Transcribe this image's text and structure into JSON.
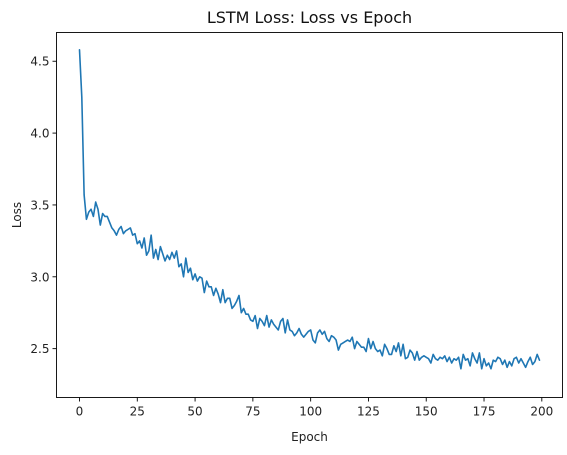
{
  "chart_data": {
    "type": "line",
    "title": "LSTM Loss: Loss vs Epoch",
    "xlabel": "Epoch",
    "ylabel": "Loss",
    "xlim": [
      -9.95,
      208.95
    ],
    "ylim": [
      2.16,
      4.7
    ],
    "xticks": [
      0,
      25,
      50,
      75,
      100,
      125,
      150,
      175,
      200
    ],
    "xtick_labels": [
      "0",
      "25",
      "50",
      "75",
      "100",
      "125",
      "150",
      "175",
      "200"
    ],
    "yticks": [
      2.5,
      3.0,
      3.5,
      4.0,
      4.5
    ],
    "ytick_labels": [
      "2.5",
      "3.0",
      "3.5",
      "4.0",
      "4.5"
    ],
    "grid": false,
    "legend": "none",
    "line_color": "#1f77b4",
    "series": [
      {
        "x": [
          0,
          1,
          2,
          3,
          4,
          5,
          6,
          7,
          8,
          9,
          10,
          11,
          12,
          13,
          14,
          15,
          16,
          17,
          18,
          19,
          20,
          21,
          22,
          23,
          24,
          25,
          26,
          27,
          28,
          29,
          30,
          31,
          32,
          33,
          34,
          35,
          36,
          37,
          38,
          39,
          40,
          41,
          42,
          43,
          44,
          45,
          46,
          47,
          48,
          49,
          50,
          51,
          52,
          53,
          54,
          55,
          56,
          57,
          58,
          59,
          60,
          61,
          62,
          63,
          64,
          65,
          66,
          67,
          68,
          69,
          70,
          71,
          72,
          73,
          74,
          75,
          76,
          77,
          78,
          79,
          80,
          81,
          82,
          83,
          84,
          85,
          86,
          87,
          88,
          89,
          90,
          91,
          92,
          93,
          94,
          95,
          96,
          97,
          98,
          99,
          100,
          101,
          102,
          103,
          104,
          105,
          106,
          107,
          108,
          109,
          110,
          111,
          112,
          113,
          114,
          115,
          116,
          117,
          118,
          119,
          120,
          121,
          122,
          123,
          124,
          125,
          126,
          127,
          128,
          129,
          130,
          131,
          132,
          133,
          134,
          135,
          136,
          137,
          138,
          139,
          140,
          141,
          142,
          143,
          144,
          145,
          146,
          147,
          148,
          149,
          150,
          151,
          152,
          153,
          154,
          155,
          156,
          157,
          158,
          159,
          160,
          161,
          162,
          163,
          164,
          165,
          166,
          167,
          168,
          169,
          170,
          171,
          172,
          173,
          174,
          175,
          176,
          177,
          178,
          179,
          180,
          181,
          182,
          183,
          184,
          185,
          186,
          187,
          188,
          189,
          190,
          191,
          192,
          193,
          194,
          195,
          196,
          197,
          198,
          199
        ],
        "values": [
          4.58,
          4.25,
          3.57,
          3.4,
          3.45,
          3.47,
          3.42,
          3.52,
          3.47,
          3.36,
          3.44,
          3.42,
          3.42,
          3.38,
          3.34,
          3.32,
          3.29,
          3.33,
          3.35,
          3.3,
          3.32,
          3.33,
          3.34,
          3.29,
          3.3,
          3.23,
          3.25,
          3.2,
          3.27,
          3.15,
          3.18,
          3.29,
          3.13,
          3.19,
          3.12,
          3.21,
          3.16,
          3.11,
          3.15,
          3.12,
          3.17,
          3.13,
          3.18,
          3.07,
          3.09,
          3.0,
          3.13,
          3.03,
          3.06,
          2.98,
          3.02,
          2.97,
          3.0,
          2.99,
          2.89,
          2.97,
          2.93,
          2.93,
          2.87,
          2.92,
          2.88,
          2.82,
          2.91,
          2.82,
          2.85,
          2.85,
          2.78,
          2.8,
          2.83,
          2.87,
          2.75,
          2.78,
          2.74,
          2.74,
          2.7,
          2.69,
          2.73,
          2.64,
          2.71,
          2.69,
          2.66,
          2.73,
          2.65,
          2.7,
          2.67,
          2.65,
          2.63,
          2.69,
          2.71,
          2.61,
          2.7,
          2.63,
          2.62,
          2.59,
          2.61,
          2.64,
          2.6,
          2.58,
          2.6,
          2.62,
          2.63,
          2.56,
          2.54,
          2.61,
          2.63,
          2.6,
          2.62,
          2.57,
          2.55,
          2.59,
          2.58,
          2.56,
          2.49,
          2.53,
          2.54,
          2.55,
          2.56,
          2.55,
          2.58,
          2.5,
          2.55,
          2.53,
          2.51,
          2.51,
          2.48,
          2.57,
          2.5,
          2.55,
          2.5,
          2.48,
          2.49,
          2.45,
          2.53,
          2.5,
          2.46,
          2.46,
          2.52,
          2.48,
          2.54,
          2.45,
          2.53,
          2.43,
          2.44,
          2.49,
          2.47,
          2.42,
          2.48,
          2.42,
          2.44,
          2.45,
          2.44,
          2.43,
          2.4,
          2.46,
          2.43,
          2.42,
          2.44,
          2.43,
          2.45,
          2.41,
          2.44,
          2.4,
          2.43,
          2.42,
          2.44,
          2.36,
          2.46,
          2.42,
          2.43,
          2.38,
          2.47,
          2.43,
          2.4,
          2.47,
          2.36,
          2.43,
          2.38,
          2.4,
          2.36,
          2.42,
          2.41,
          2.44,
          2.43,
          2.39,
          2.42,
          2.37,
          2.41,
          2.38,
          2.43,
          2.44,
          2.4,
          2.43,
          2.4,
          2.37,
          2.41,
          2.44,
          2.39,
          2.41,
          2.46,
          2.42
        ]
      }
    ]
  }
}
